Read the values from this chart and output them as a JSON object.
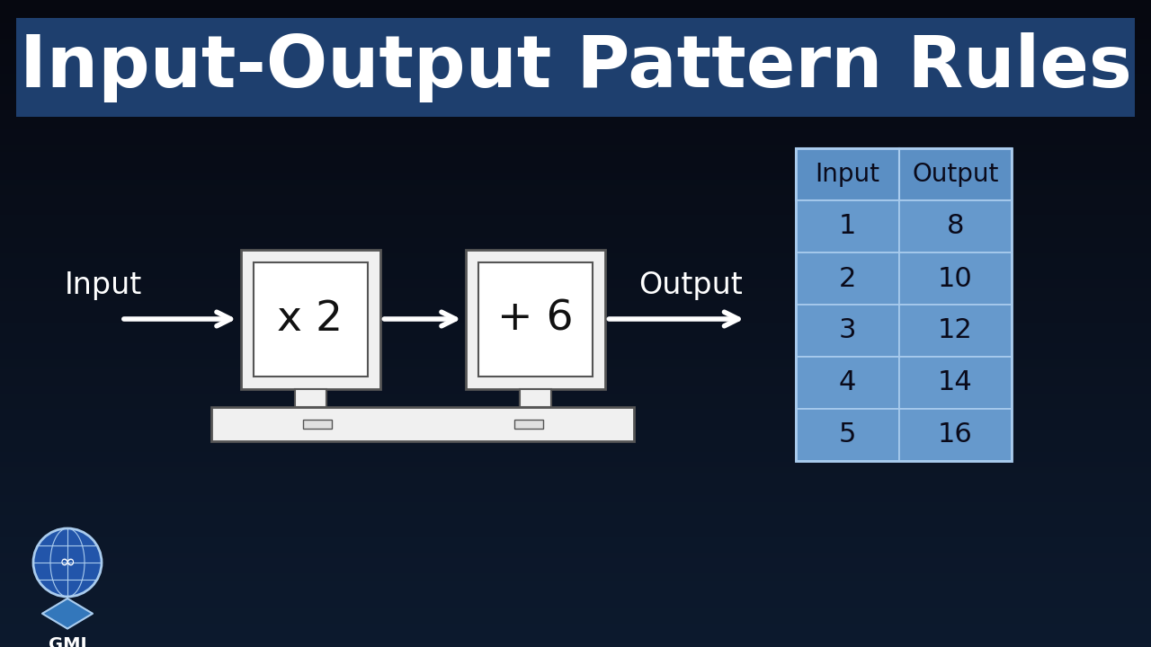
{
  "title": "Input-Output Pattern Rules",
  "title_bg_color": "#1e3f6e",
  "title_text_color": "#ffffff",
  "bg_color": "#060810",
  "bg_gradient_top": "#060810",
  "bg_gradient_bottom": "#0d1a2e",
  "table_header": [
    "Input",
    "Output"
  ],
  "table_rows": [
    [
      1,
      8
    ],
    [
      2,
      10
    ],
    [
      3,
      12
    ],
    [
      4,
      14
    ],
    [
      5,
      16
    ]
  ],
  "table_header_bg": "#5b8fc4",
  "table_row_bg": "#6699cc",
  "table_border_color": "#aaccee",
  "table_text_color": "#0a0a1a",
  "machine1_label": "x 2",
  "machine2_label": "+ 6",
  "arrow_color": "#ffffff",
  "input_label": "Input",
  "output_label": "Output",
  "machine_body_color": "#f0f0f0",
  "machine_screen_color": "#ffffff",
  "machine_base_color": "#e0e0e0",
  "machine_outline": "#555555"
}
